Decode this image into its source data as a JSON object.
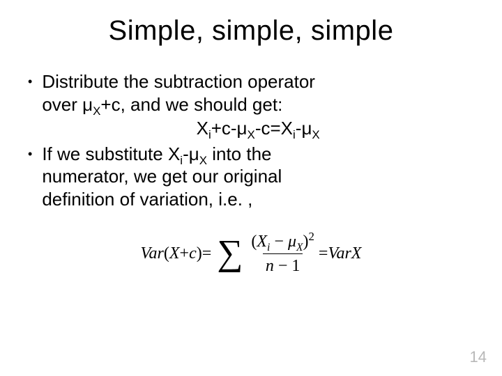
{
  "title": "Simple, simple, simple",
  "bullets": {
    "b1_line1": "Distribute the subtraction operator",
    "b1_line2_pre": "over μ",
    "b1_line2_post": "+c, and we should get:",
    "eq_lhs1": "X",
    "eq_mid1": "+c-μ",
    "eq_mid2": "-c=X",
    "eq_mid3": "-μ",
    "b2_pre": "If we substitute X",
    "b2_mid": "-μ",
    "b2_post": " into the",
    "b2_l2": "numerator, we get our original",
    "b2_l3": "definition of variation, i.e. ,"
  },
  "subs": {
    "X": "X",
    "i": "i"
  },
  "formula": {
    "lhs_var": "Var",
    "lhs_open": "(",
    "lhs_X": "X",
    "lhs_plus": " + ",
    "lhs_c": "c",
    "lhs_close": ")",
    "eq": " = ",
    "num_open": "(",
    "num_X": "X",
    "num_minus": " − ",
    "num_mu": "μ",
    "num_close": ")",
    "num_sq": "2",
    "den_n": "n",
    "den_minus": " − ",
    "den_one": "1",
    "rhs_eq": " = ",
    "rhs_var": "Var",
    "rhs_X": "X"
  },
  "page_number": "14",
  "colors": {
    "text": "#000000",
    "bg": "#ffffff",
    "pagenum": "#b8b8b8"
  }
}
